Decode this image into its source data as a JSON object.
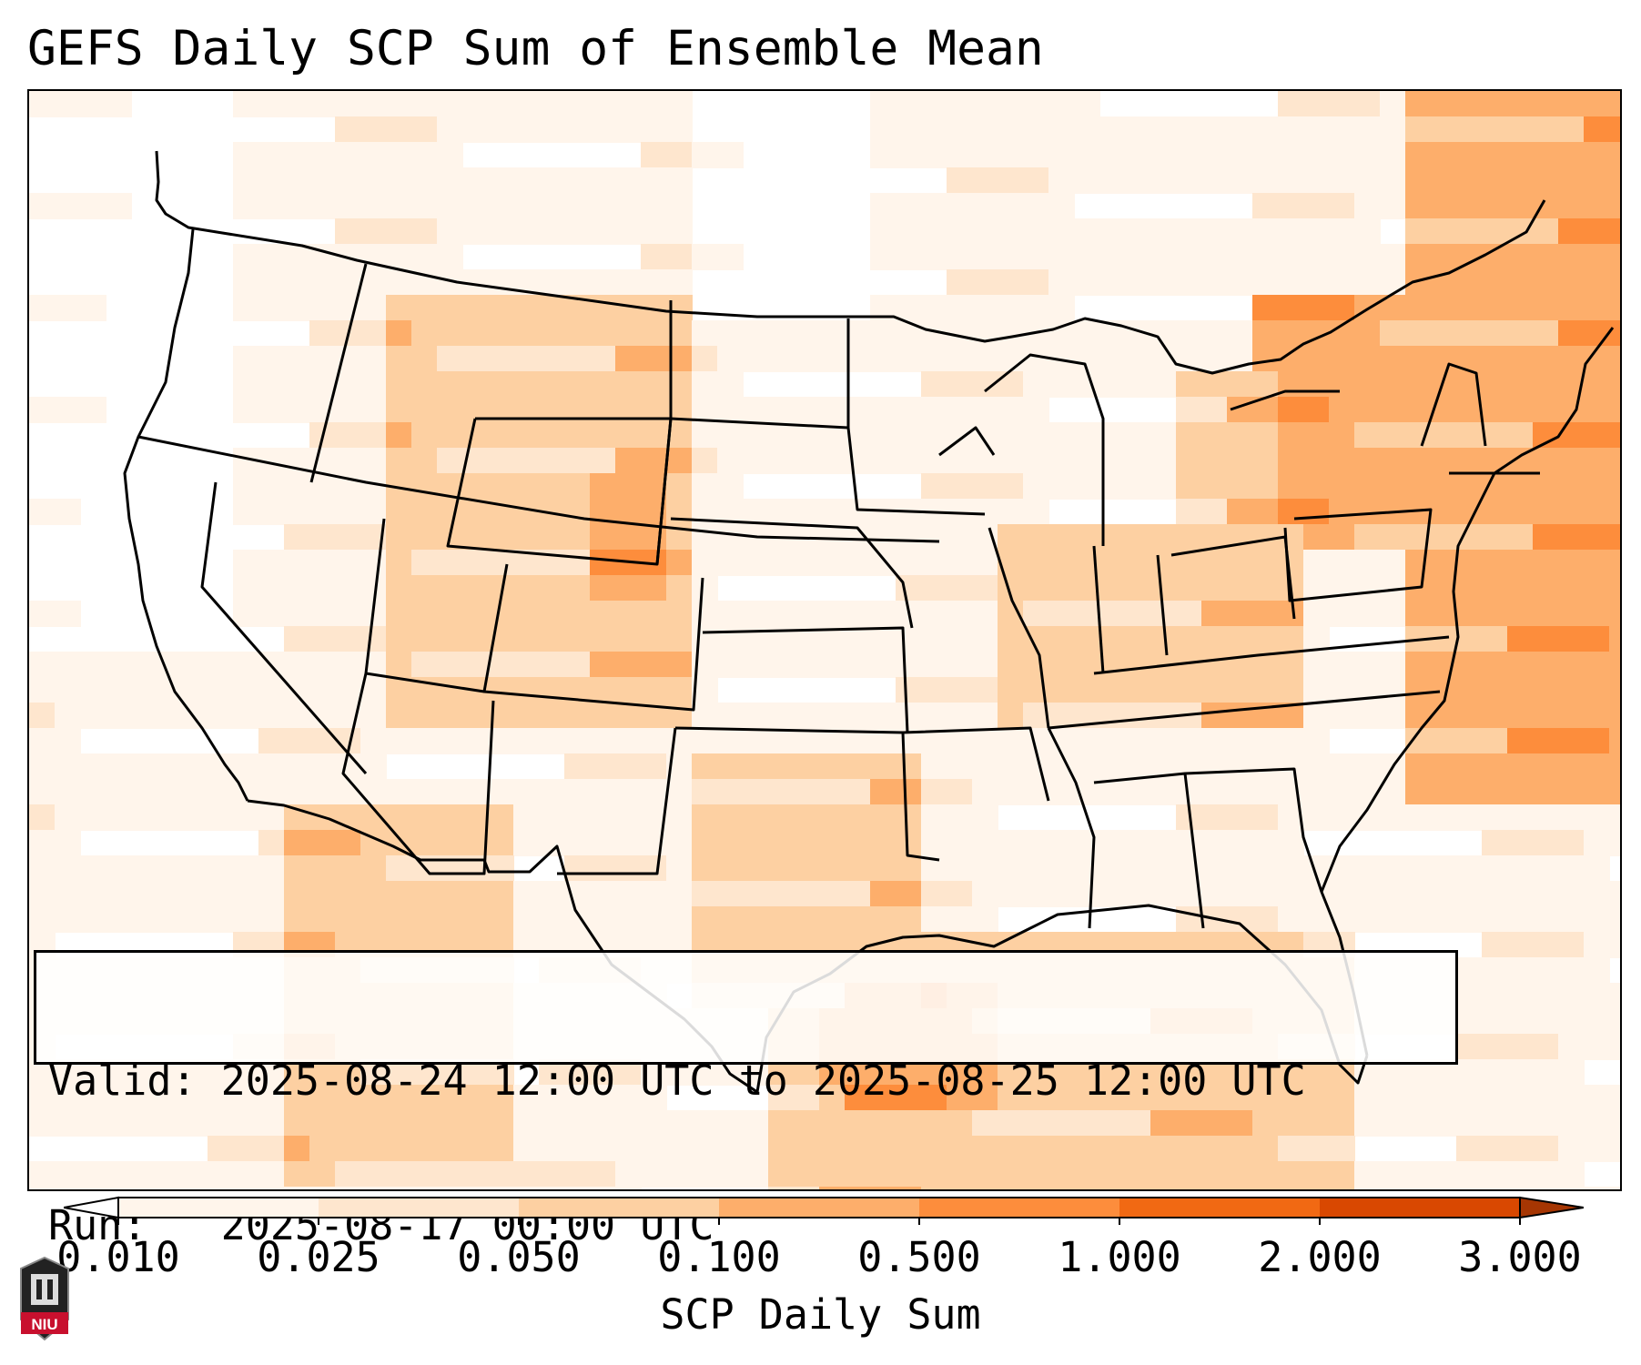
{
  "title": "GEFS Daily SCP Sum of Ensemble Mean",
  "info": {
    "valid_line": "Valid: 2025-08-24 12:00 UTC to 2025-08-25 12:00 UTC",
    "run_line": "Run:   2025-08-17 00:00 UTC"
  },
  "colorbar": {
    "label": "SCP Daily Sum",
    "extend": "both",
    "levels": [
      "0.010",
      "0.025",
      "0.050",
      "0.100",
      "0.500",
      "1.000",
      "2.000",
      "3.000"
    ],
    "colors": [
      "#fff5eb",
      "#fee6ce",
      "#fdd0a2",
      "#fdae6b",
      "#fd8d3c",
      "#f16913",
      "#d94801"
    ],
    "under_color": "#ffffff",
    "over_color": "#a63603"
  },
  "map": {
    "projection": "Lambert Conformal, CONUS",
    "variable": "SCP daily sum",
    "shading_levels": [
      "#ffffff",
      "#fff5eb",
      "#fee6ce",
      "#fdd0a2",
      "#fdae6b",
      "#fd8d3c",
      "#f16913"
    ],
    "boundaries": [
      "states",
      "coastlines",
      "international borders",
      "lakes"
    ]
  },
  "logo": {
    "text": "NIU",
    "color": "#c8102e"
  }
}
